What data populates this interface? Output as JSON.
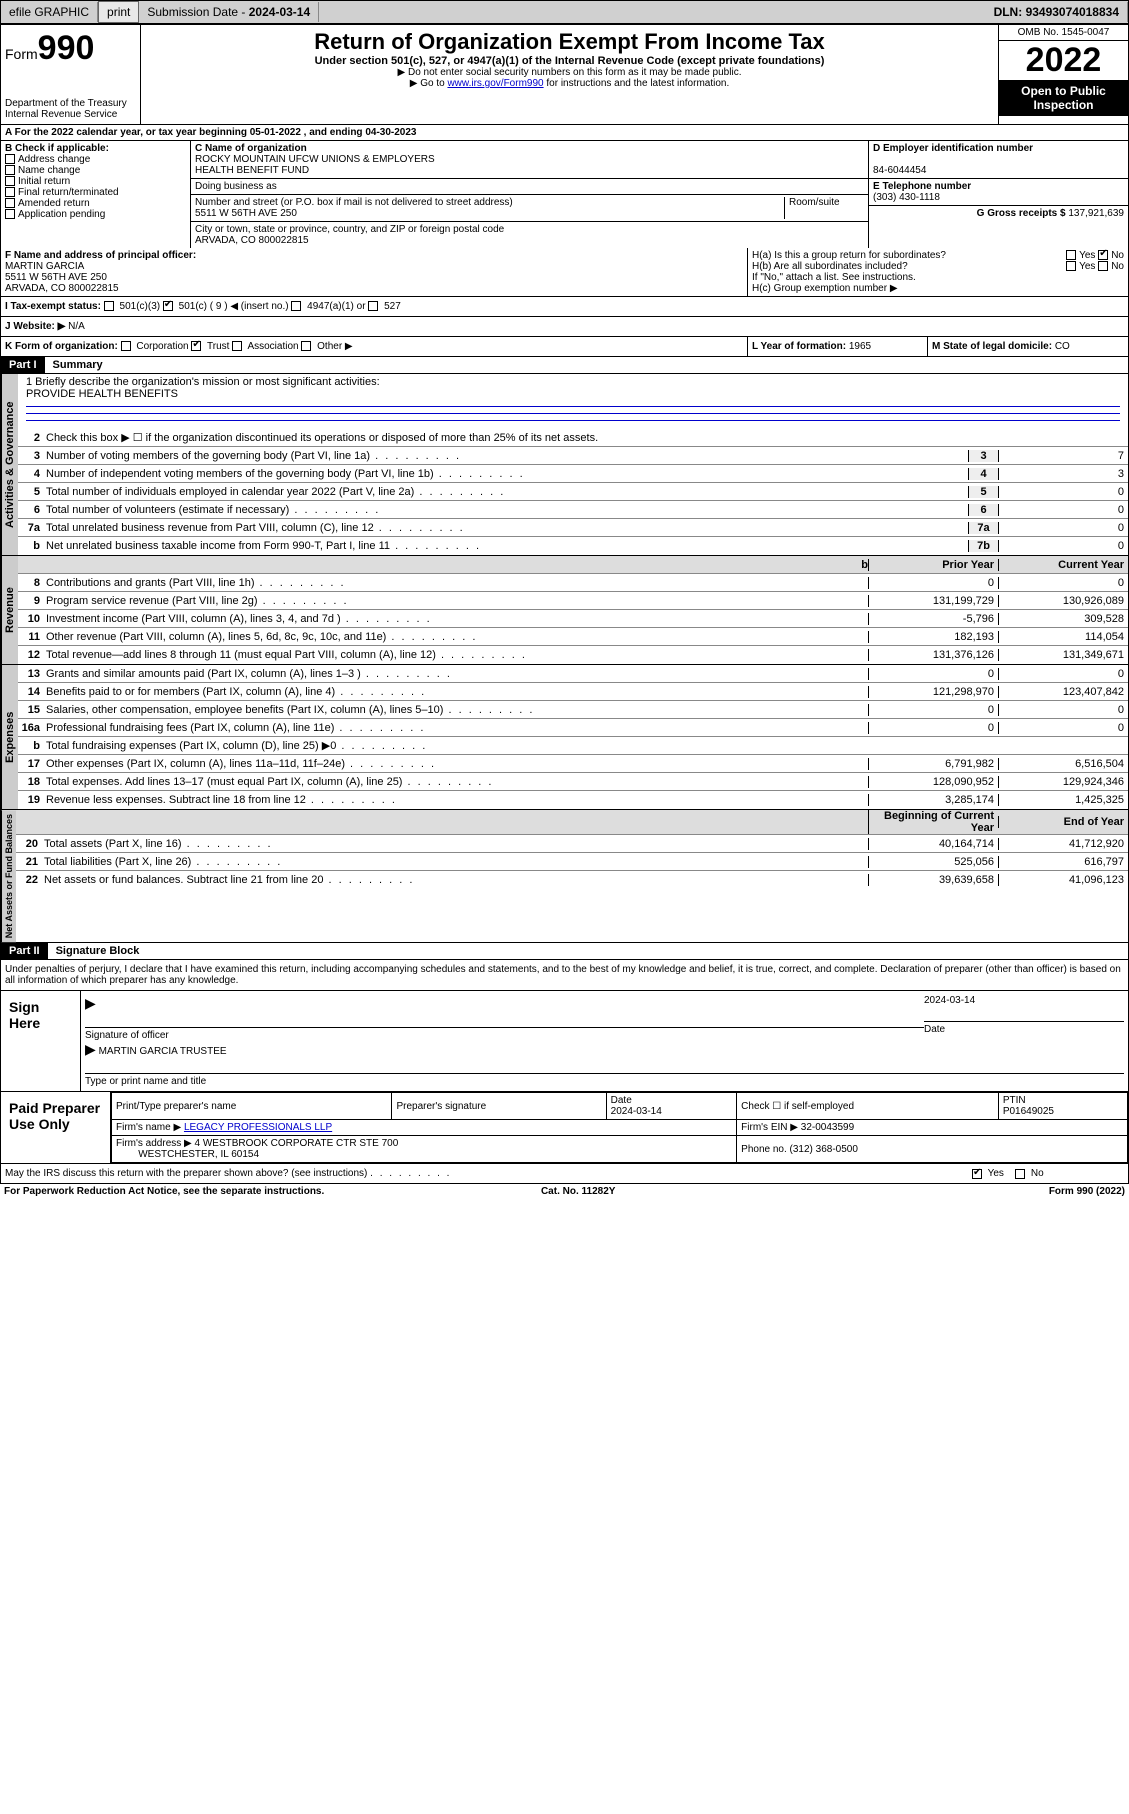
{
  "topbar": {
    "efile": "efile GRAPHIC",
    "print": "print",
    "sub_label": "Submission Date - ",
    "sub_date": "2024-03-14",
    "dln_label": "DLN: ",
    "dln": "93493074018834"
  },
  "header": {
    "form_word": "Form",
    "form_num": "990",
    "dept": "Department of the Treasury",
    "irs": "Internal Revenue Service",
    "title": "Return of Organization Exempt From Income Tax",
    "sub": "Under section 501(c), 527, or 4947(a)(1) of the Internal Revenue Code (except private foundations)",
    "note1": "▶ Do not enter social security numbers on this form as it may be made public.",
    "note2_pre": "▶ Go to ",
    "note2_link": "www.irs.gov/Form990",
    "note2_post": " for instructions and the latest information.",
    "omb": "OMB No. 1545-0047",
    "year": "2022",
    "open": "Open to Public Inspection"
  },
  "lineA": {
    "text": "A For the 2022 calendar year, or tax year beginning 05-01-2022   , and ending 04-30-2023"
  },
  "boxB": {
    "title": "B Check if applicable:",
    "opts": [
      "Address change",
      "Name change",
      "Initial return",
      "Final return/terminated",
      "Amended return",
      "Application pending"
    ]
  },
  "boxC": {
    "label": "C Name of organization",
    "name1": "ROCKY MOUNTAIN UFCW UNIONS & EMPLOYERS",
    "name2": "HEALTH BENEFIT FUND",
    "dba_label": "Doing business as",
    "addr_label": "Number and street (or P.O. box if mail is not delivered to street address)",
    "room_label": "Room/suite",
    "addr": "5511 W 56TH AVE 250",
    "city_label": "City or town, state or province, country, and ZIP or foreign postal code",
    "city": "ARVADA, CO  800022815"
  },
  "boxD": {
    "label": "D Employer identification number",
    "val": "84-6044454"
  },
  "boxE": {
    "label": "E Telephone number",
    "val": "(303) 430-1118"
  },
  "boxG": {
    "label": "G Gross receipts $ ",
    "val": "137,921,639"
  },
  "boxF": {
    "label": "F Name and address of principal officer:",
    "name": "MARTIN GARCIA",
    "addr": "5511 W 56TH AVE 250",
    "city": "ARVADA, CO  800022815"
  },
  "boxH": {
    "a": "H(a)  Is this a group return for subordinates?",
    "b": "H(b)  Are all subordinates included?",
    "note": "If \"No,\" attach a list. See instructions.",
    "c": "H(c)  Group exemption number ▶",
    "yes": "Yes",
    "no": "No"
  },
  "lineI": {
    "label": "I  Tax-exempt status:",
    "o1": "501(c)(3)",
    "o2": "501(c) ( 9 ) ◀ (insert no.)",
    "o3": "4947(a)(1) or",
    "o4": "527"
  },
  "lineJ": {
    "label": "J  Website: ▶",
    "val": "N/A"
  },
  "lineK": {
    "label": "K Form of organization:",
    "o1": "Corporation",
    "o2": "Trust",
    "o3": "Association",
    "o4": "Other ▶"
  },
  "lineL": {
    "label": "L Year of formation: ",
    "val": "1965"
  },
  "lineM": {
    "label": "M State of legal domicile: ",
    "val": "CO"
  },
  "part1": {
    "label": "Part I",
    "title": "Summary"
  },
  "mission": {
    "q": "1  Briefly describe the organization's mission or most significant activities:",
    "a": "PROVIDE HEALTH BENEFITS"
  },
  "gov": {
    "tab": "Activities & Governance",
    "l2": "Check this box ▶ ☐  if the organization discontinued its operations or disposed of more than 25% of its net assets.",
    "rows": [
      {
        "n": "3",
        "d": "Number of voting members of the governing body (Part VI, line 1a)",
        "box": "3",
        "v": "7"
      },
      {
        "n": "4",
        "d": "Number of independent voting members of the governing body (Part VI, line 1b)",
        "box": "4",
        "v": "3"
      },
      {
        "n": "5",
        "d": "Total number of individuals employed in calendar year 2022 (Part V, line 2a)",
        "box": "5",
        "v": "0"
      },
      {
        "n": "6",
        "d": "Total number of volunteers (estimate if necessary)",
        "box": "6",
        "v": "0"
      },
      {
        "n": "7a",
        "d": "Total unrelated business revenue from Part VIII, column (C), line 12",
        "box": "7a",
        "v": "0"
      },
      {
        "n": "b",
        "d": "Net unrelated business taxable income from Form 990-T, Part I, line 11",
        "box": "7b",
        "v": "0"
      }
    ]
  },
  "colheads": {
    "prior": "Prior Year",
    "current": "Current Year",
    "boy": "Beginning of Current Year",
    "eoy": "End of Year"
  },
  "rev": {
    "tab": "Revenue",
    "rows": [
      {
        "n": "8",
        "d": "Contributions and grants (Part VIII, line 1h)",
        "p": "0",
        "c": "0"
      },
      {
        "n": "9",
        "d": "Program service revenue (Part VIII, line 2g)",
        "p": "131,199,729",
        "c": "130,926,089"
      },
      {
        "n": "10",
        "d": "Investment income (Part VIII, column (A), lines 3, 4, and 7d )",
        "p": "-5,796",
        "c": "309,528"
      },
      {
        "n": "11",
        "d": "Other revenue (Part VIII, column (A), lines 5, 6d, 8c, 9c, 10c, and 11e)",
        "p": "182,193",
        "c": "114,054"
      },
      {
        "n": "12",
        "d": "Total revenue—add lines 8 through 11 (must equal Part VIII, column (A), line 12)",
        "p": "131,376,126",
        "c": "131,349,671"
      }
    ]
  },
  "exp": {
    "tab": "Expenses",
    "rows": [
      {
        "n": "13",
        "d": "Grants and similar amounts paid (Part IX, column (A), lines 1–3 )",
        "p": "0",
        "c": "0"
      },
      {
        "n": "14",
        "d": "Benefits paid to or for members (Part IX, column (A), line 4)",
        "p": "121,298,970",
        "c": "123,407,842"
      },
      {
        "n": "15",
        "d": "Salaries, other compensation, employee benefits (Part IX, column (A), lines 5–10)",
        "p": "0",
        "c": "0"
      },
      {
        "n": "16a",
        "d": "Professional fundraising fees (Part IX, column (A), line 11e)",
        "p": "0",
        "c": "0"
      },
      {
        "n": "b",
        "d": "Total fundraising expenses (Part IX, column (D), line 25) ▶0",
        "p": "",
        "c": "",
        "shade": true
      },
      {
        "n": "17",
        "d": "Other expenses (Part IX, column (A), lines 11a–11d, 11f–24e)",
        "p": "6,791,982",
        "c": "6,516,504"
      },
      {
        "n": "18",
        "d": "Total expenses. Add lines 13–17 (must equal Part IX, column (A), line 25)",
        "p": "128,090,952",
        "c": "129,924,346"
      },
      {
        "n": "19",
        "d": "Revenue less expenses. Subtract line 18 from line 12",
        "p": "3,285,174",
        "c": "1,425,325"
      }
    ]
  },
  "net": {
    "tab": "Net Assets or Fund Balances",
    "rows": [
      {
        "n": "20",
        "d": "Total assets (Part X, line 16)",
        "p": "40,164,714",
        "c": "41,712,920"
      },
      {
        "n": "21",
        "d": "Total liabilities (Part X, line 26)",
        "p": "525,056",
        "c": "616,797"
      },
      {
        "n": "22",
        "d": "Net assets or fund balances. Subtract line 21 from line 20",
        "p": "39,639,658",
        "c": "41,096,123"
      }
    ]
  },
  "part2": {
    "label": "Part II",
    "title": "Signature Block"
  },
  "penalty": "Under penalties of perjury, I declare that I have examined this return, including accompanying schedules and statements, and to the best of my knowledge and belief, it is true, correct, and complete. Declaration of preparer (other than officer) is based on all information of which preparer has any knowledge.",
  "sign": {
    "here": "Sign Here",
    "sig_label": "Signature of officer",
    "date": "2024-03-14",
    "date_label": "Date",
    "name": "MARTIN GARCIA  TRUSTEE",
    "name_label": "Type or print name and title"
  },
  "paid": {
    "title": "Paid Preparer Use Only",
    "h1": "Print/Type preparer's name",
    "h2": "Preparer's signature",
    "h3": "Date",
    "h3v": "2024-03-14",
    "h4": "Check ☐ if self-employed",
    "h5": "PTIN",
    "h5v": "P01649025",
    "firm_label": "Firm's name    ▶ ",
    "firm": "LEGACY PROFESSIONALS LLP",
    "ein_label": "Firm's EIN ▶ ",
    "ein": "32-0043599",
    "addr_label": "Firm's address ▶ ",
    "addr1": "4 WESTBROOK CORPORATE CTR STE 700",
    "addr2": "WESTCHESTER, IL  60154",
    "phone_label": "Phone no. ",
    "phone": "(312) 368-0500"
  },
  "discuss": {
    "q": "May the IRS discuss this return with the preparer shown above? (see instructions)",
    "yes": "Yes",
    "no": "No"
  },
  "footer": {
    "l": "For Paperwork Reduction Act Notice, see the separate instructions.",
    "m": "Cat. No. 11282Y",
    "r": "Form 990 (2022)"
  }
}
